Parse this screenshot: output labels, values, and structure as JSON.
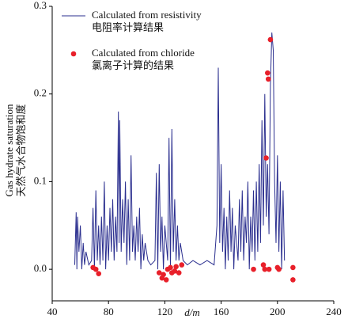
{
  "chart_data": {
    "type": "line",
    "xlabel": "d/m",
    "ylabel": "Gas hydrate saturation",
    "ylabel_cn": "天然气水合物饱和度",
    "xlim": [
      40,
      240
    ],
    "xticks": [
      40,
      80,
      120,
      160,
      200,
      240
    ],
    "ylim": [
      -0.036,
      0.3
    ],
    "yticks": [
      {
        "value": 0,
        "label": "0.0"
      },
      0.1,
      0.2,
      0.3
    ],
    "legend": "upper left",
    "series": [
      {
        "name": "Calculated from resistivity",
        "name_cn": "电阻率计算结果",
        "color": "#2b2f8f",
        "type": "line",
        "x": [
          56,
          57,
          57.5,
          58,
          59,
          60,
          61,
          62,
          63,
          64,
          66,
          68,
          69,
          70,
          71,
          72,
          73,
          74,
          75,
          76,
          77,
          78,
          79,
          80,
          81,
          82,
          83,
          84,
          85,
          86,
          87,
          87.5,
          88,
          89,
          90,
          91,
          92,
          93,
          94,
          95,
          96,
          97,
          98,
          99,
          100,
          101,
          102,
          103,
          104,
          105,
          106,
          108,
          110,
          113,
          114,
          115,
          116,
          117,
          118,
          119,
          120,
          122,
          123,
          124,
          125,
          126,
          127,
          128,
          129,
          130,
          131,
          133,
          136,
          140,
          145,
          150,
          155,
          157,
          158,
          159,
          160,
          161,
          162,
          163,
          164,
          165,
          166,
          167,
          168,
          169,
          170,
          172,
          173,
          174,
          175,
          176,
          177,
          178,
          179,
          180,
          181,
          182,
          183,
          184,
          185,
          186,
          187,
          188,
          189,
          190,
          191,
          192,
          193,
          194,
          195,
          196,
          197,
          198,
          199,
          200,
          201,
          202,
          203,
          204,
          205
        ],
        "values": [
          0.005,
          0.065,
          0,
          0.06,
          0.02,
          0.05,
          0,
          0.03,
          0.005,
          0.02,
          0.005,
          0.01,
          0.07,
          0,
          0.09,
          0.01,
          0.05,
          0.005,
          0.06,
          0.01,
          0.1,
          0,
          0.05,
          0.01,
          0.07,
          0.02,
          0.08,
          0.01,
          0.06,
          0.02,
          0.18,
          0.03,
          0.17,
          0.02,
          0.08,
          0.03,
          0.1,
          0.005,
          0.08,
          0.01,
          0.13,
          0.02,
          0.05,
          0.01,
          0.06,
          0.02,
          0.07,
          0,
          0.04,
          0.01,
          0.03,
          0.01,
          0.005,
          0.01,
          0.11,
          0,
          0.12,
          0.02,
          0.06,
          0,
          0.05,
          0.01,
          0.15,
          0,
          0.16,
          0.02,
          0.08,
          0.01,
          0.05,
          0.01,
          0.03,
          0.01,
          0.005,
          0.01,
          0.005,
          0.01,
          0.005,
          0.05,
          0.23,
          0.03,
          0.12,
          0.02,
          0.07,
          0,
          0.06,
          0.01,
          0.09,
          0.02,
          0.07,
          0,
          0.05,
          0.01,
          0.08,
          0.02,
          0.09,
          0.01,
          0.06,
          0.03,
          0.1,
          0,
          0.06,
          0.02,
          0.09,
          0.01,
          0.1,
          0.02,
          0.12,
          0.03,
          0.17,
          0.05,
          0.2,
          0.06,
          0.12,
          0.04,
          0.21,
          0.27,
          0.25,
          0.1,
          0.03,
          0.13,
          0.02,
          0.1,
          0,
          0.09,
          0.01
        ]
      },
      {
        "name": "Calculated from chloride",
        "name_cn": "氯离子计算的结果",
        "color": "#e8202a",
        "type": "scatter",
        "x": [
          69,
          71,
          73,
          116,
          118,
          119,
          121,
          122,
          124,
          125,
          127,
          128,
          130,
          132,
          183,
          190,
          191,
          192,
          193,
          193.5,
          194,
          195,
          200,
          201,
          211,
          211
        ],
        "values": [
          0.002,
          0,
          -0.005,
          -0.004,
          -0.01,
          -0.006,
          -0.012,
          0,
          0.002,
          -0.004,
          -0.002,
          0.003,
          -0.004,
          0.005,
          0,
          0.005,
          0,
          0.127,
          0.224,
          0.217,
          0,
          0.262,
          0.002,
          0,
          0.002,
          -0.012
        ]
      }
    ]
  }
}
